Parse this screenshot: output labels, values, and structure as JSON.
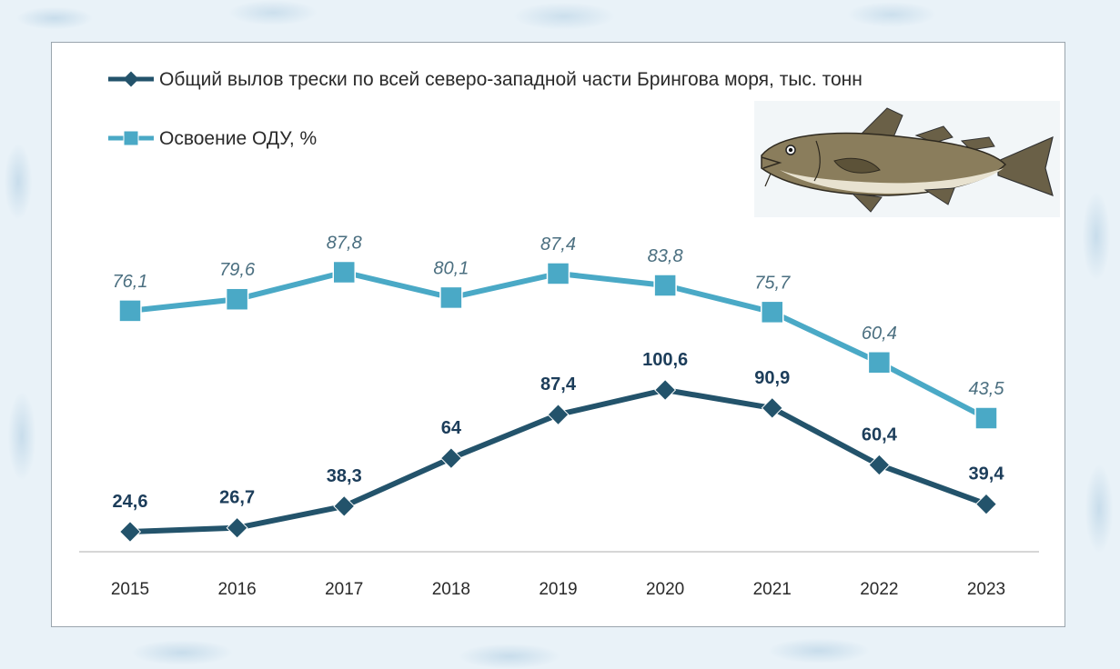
{
  "chart_data": {
    "type": "line",
    "categories": [
      "2015",
      "2016",
      "2017",
      "2018",
      "2019",
      "2020",
      "2021",
      "2022",
      "2023"
    ],
    "series": [
      {
        "name": "Общий вылов трески по всей северо-западной части Брингова моря, тыс. тонн",
        "values": [
          24.6,
          26.7,
          38.3,
          64,
          87.4,
          100.6,
          90.9,
          60.4,
          39.4
        ],
        "labels": [
          "24,6",
          "26,7",
          "38,3",
          "64",
          "87,4",
          "100,6",
          "90,9",
          "60,4",
          "39,4"
        ],
        "color": "#23536b",
        "marker": "diamond"
      },
      {
        "name": "Освоение ОДУ, %",
        "values": [
          76.1,
          79.6,
          87.8,
          80.1,
          87.4,
          83.8,
          75.7,
          60.4,
          43.5
        ],
        "labels": [
          "76,1",
          "79,6",
          "87,8",
          "80,1",
          "87,4",
          "83,8",
          "75,7",
          "60,4",
          "43,5"
        ],
        "color": "#4aa9c6",
        "marker": "square"
      }
    ],
    "title": "",
    "xlabel": "",
    "ylabel": "",
    "legend": "top-left",
    "grid": false,
    "decoration": "cod-fish-illustration"
  }
}
